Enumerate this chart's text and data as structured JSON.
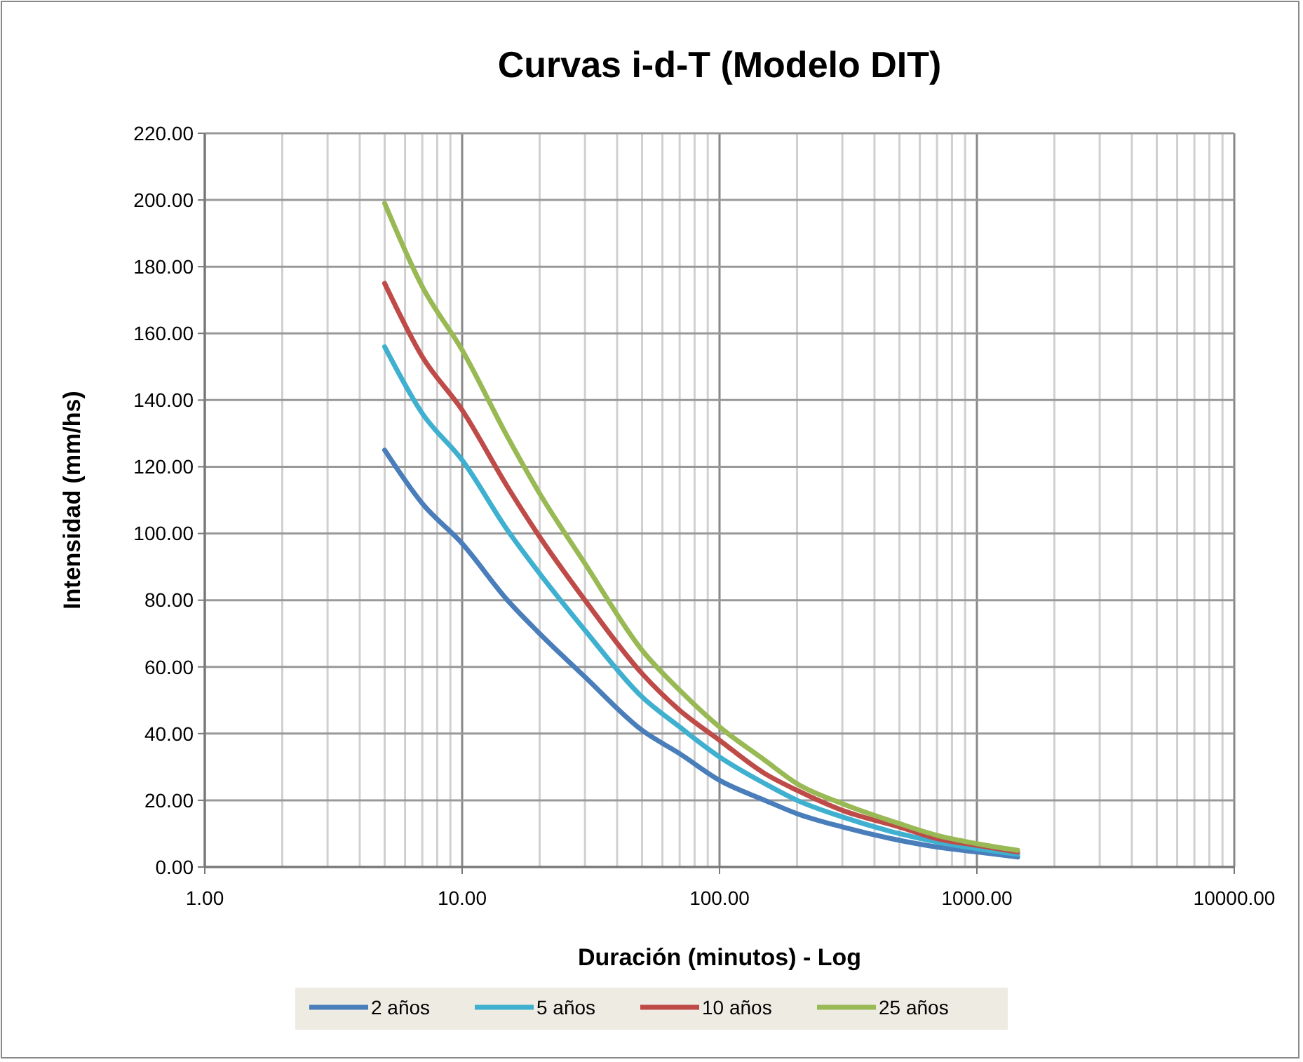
{
  "chart_data": {
    "type": "line",
    "title": "Curvas i-d-T (Modelo DIT)",
    "xlabel": "Duración  (minutos) - Log",
    "ylabel": "Intensidad (mm/hs)",
    "x": [
      5,
      7,
      10,
      15,
      20,
      30,
      50,
      70,
      100,
      150,
      200,
      300,
      500,
      700,
      1000,
      1440
    ],
    "series": [
      {
        "name": "2 años",
        "color": "#4a7ebb",
        "values": [
          125,
          109,
          97,
          80,
          70,
          57,
          41,
          34,
          26,
          20,
          16,
          12,
          8,
          6,
          4.5,
          3
        ]
      },
      {
        "name": "5 años",
        "color": "#3fb0cf",
        "values": [
          156,
          136,
          122,
          101,
          88,
          71,
          51,
          42,
          33,
          25,
          20,
          15,
          10,
          7.5,
          5.5,
          3.8
        ]
      },
      {
        "name": "10 años",
        "color": "#be4b48",
        "values": [
          175,
          153,
          137,
          114,
          99,
          80,
          58,
          47,
          38,
          28,
          23,
          17,
          12,
          8.5,
          6.5,
          4.5
        ]
      },
      {
        "name": "25 años",
        "color": "#98b954",
        "values": [
          199,
          174,
          155,
          129,
          112,
          91,
          65,
          53,
          42,
          32,
          25,
          19,
          13,
          9.5,
          7,
          5
        ]
      }
    ],
    "log": "x",
    "xlim": [
      1,
      10000
    ],
    "xticks": [
      {
        "value": 1,
        "label": "1.00"
      },
      {
        "value": 10,
        "label": "10.00"
      },
      {
        "value": 100,
        "label": "100.00"
      },
      {
        "value": 1000,
        "label": "1000.00"
      },
      {
        "value": 10000,
        "label": "10000.00"
      }
    ],
    "ylim": [
      0,
      220
    ],
    "yticks": [
      {
        "value": 0,
        "label": "0.00"
      },
      {
        "value": 20,
        "label": "20.00"
      },
      {
        "value": 40,
        "label": "40.00"
      },
      {
        "value": 60,
        "label": "60.00"
      },
      {
        "value": 80,
        "label": "80.00"
      },
      {
        "value": 100,
        "label": "100.00"
      },
      {
        "value": 120,
        "label": "120.00"
      },
      {
        "value": 140,
        "label": "140.00"
      },
      {
        "value": 160,
        "label": "160.00"
      },
      {
        "value": 180,
        "label": "180.00"
      },
      {
        "value": 200,
        "label": "200.00"
      },
      {
        "value": 220,
        "label": "220.00"
      }
    ],
    "grid": true,
    "legend": "bottom",
    "marker": "none",
    "line_style": "solid"
  }
}
